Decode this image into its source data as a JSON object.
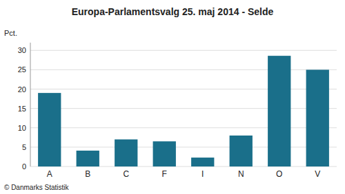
{
  "chart_data": {
    "type": "bar",
    "title": "Europa-Parlamentsvalg 25. maj 2014 - Selde",
    "y_label": "Pct.",
    "annotations": [
      "© Danmarks Statistik"
    ],
    "categories": [
      "A",
      "B",
      "C",
      "F",
      "I",
      "N",
      "O",
      "V"
    ],
    "values": [
      19.0,
      4.1,
      7.0,
      6.5,
      2.3,
      8.0,
      28.6,
      25.0
    ],
    "color": "#1a6f8a",
    "ylim": [
      0,
      32
    ],
    "yticks": [
      0,
      5,
      10,
      15,
      20,
      25,
      30
    ],
    "grid": true
  }
}
